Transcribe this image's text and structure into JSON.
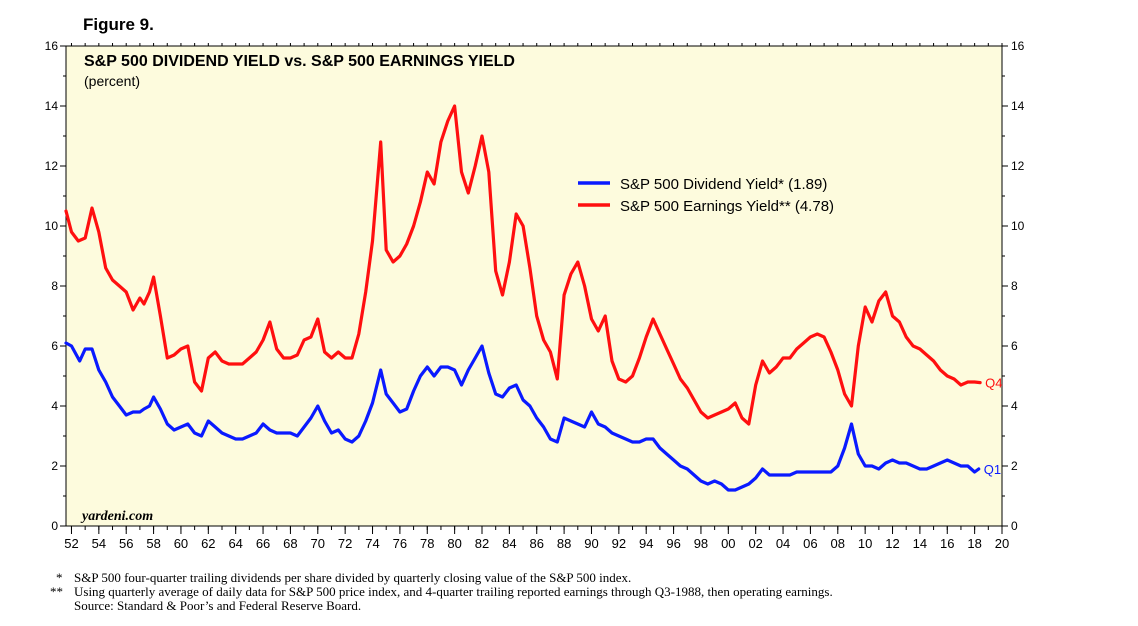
{
  "figure_label": "Figure 9.",
  "source": "Source: Standard & Poor’s and Federal Reserve Board.",
  "footnotes": [
    {
      "mark": "*",
      "text": "S&P 500 four-quarter trailing dividends per share divided by quarterly closing value of the S&P 500 index."
    },
    {
      "mark": "**",
      "text": "Using quarterly average of daily data for S&P 500 price index, and 4-quarter trailing reported earnings through Q3-1988, then operating earnings."
    }
  ],
  "colors": {
    "background": "#fdfbdd",
    "dividend": "#0a1aff",
    "earnings": "#ff0f0f",
    "axis": "#000000"
  },
  "chart_data": {
    "type": "line",
    "title": "S&P 500 DIVIDEND YIELD vs. S&P 500 EARNINGS YIELD",
    "subtitle": "(percent)",
    "watermark": "yardeni.com",
    "xlim": [
      1951.6,
      2020.0
    ],
    "ylim": [
      0,
      16
    ],
    "y_ticks": [
      "0",
      "2",
      "4",
      "6",
      "8",
      "10",
      "12",
      "14",
      "16"
    ],
    "x_ticks": [
      {
        "year": 1952,
        "label": "52"
      },
      {
        "year": 1954,
        "label": "54"
      },
      {
        "year": 1956,
        "label": "56"
      },
      {
        "year": 1958,
        "label": "58"
      },
      {
        "year": 1960,
        "label": "60"
      },
      {
        "year": 1962,
        "label": "62"
      },
      {
        "year": 1964,
        "label": "64"
      },
      {
        "year": 1966,
        "label": "66"
      },
      {
        "year": 1968,
        "label": "68"
      },
      {
        "year": 1970,
        "label": "70"
      },
      {
        "year": 1972,
        "label": "72"
      },
      {
        "year": 1974,
        "label": "74"
      },
      {
        "year": 1976,
        "label": "76"
      },
      {
        "year": 1978,
        "label": "78"
      },
      {
        "year": 1980,
        "label": "80"
      },
      {
        "year": 1982,
        "label": "82"
      },
      {
        "year": 1984,
        "label": "84"
      },
      {
        "year": 1986,
        "label": "86"
      },
      {
        "year": 1988,
        "label": "88"
      },
      {
        "year": 1990,
        "label": "90"
      },
      {
        "year": 1992,
        "label": "92"
      },
      {
        "year": 1994,
        "label": "94"
      },
      {
        "year": 1996,
        "label": "96"
      },
      {
        "year": 1998,
        "label": "98"
      },
      {
        "year": 2000,
        "label": "00"
      },
      {
        "year": 2002,
        "label": "02"
      },
      {
        "year": 2004,
        "label": "04"
      },
      {
        "year": 2006,
        "label": "06"
      },
      {
        "year": 2008,
        "label": "08"
      },
      {
        "year": 2010,
        "label": "10"
      },
      {
        "year": 2012,
        "label": "12"
      },
      {
        "year": 2014,
        "label": "14"
      },
      {
        "year": 2016,
        "label": "16"
      },
      {
        "year": 2018,
        "label": "18"
      },
      {
        "year": 2020,
        "label": "20"
      }
    ],
    "legend_position": "upper-right",
    "series": [
      {
        "key": "dividend",
        "name": "S&P 500 Dividend Yield* (1.89)",
        "end_label": "Q1",
        "x": [
          1951.6,
          1952.0,
          1952.6,
          1953.0,
          1953.5,
          1954.0,
          1954.5,
          1955.0,
          1955.5,
          1956.0,
          1956.5,
          1957.0,
          1957.3,
          1957.7,
          1958.0,
          1958.5,
          1959.0,
          1959.5,
          1960.0,
          1960.5,
          1961.0,
          1961.5,
          1962.0,
          1962.5,
          1963.0,
          1963.5,
          1964.0,
          1964.5,
          1965.0,
          1965.5,
          1966.0,
          1966.5,
          1967.0,
          1967.5,
          1968.0,
          1968.5,
          1969.0,
          1969.5,
          1970.0,
          1970.5,
          1971.0,
          1971.5,
          1972.0,
          1972.5,
          1973.0,
          1973.5,
          1974.0,
          1974.6,
          1975.0,
          1975.5,
          1976.0,
          1976.5,
          1977.0,
          1977.5,
          1978.0,
          1978.5,
          1979.0,
          1979.5,
          1980.0,
          1980.5,
          1981.0,
          1981.5,
          1982.0,
          1982.5,
          1983.0,
          1983.5,
          1984.0,
          1984.5,
          1985.0,
          1985.5,
          1986.0,
          1986.5,
          1987.0,
          1987.5,
          1988.0,
          1988.5,
          1989.0,
          1989.5,
          1990.0,
          1990.5,
          1991.0,
          1991.5,
          1992.0,
          1992.5,
          1993.0,
          1993.5,
          1994.0,
          1994.5,
          1995.0,
          1995.5,
          1996.0,
          1996.5,
          1997.0,
          1997.5,
          1998.0,
          1998.5,
          1999.0,
          1999.5,
          2000.0,
          2000.5,
          2001.0,
          2001.5,
          2002.0,
          2002.5,
          2003.0,
          2003.5,
          2004.0,
          2004.5,
          2005.0,
          2005.5,
          2006.0,
          2006.5,
          2007.0,
          2007.5,
          2008.0,
          2008.5,
          2009.0,
          2009.5,
          2010.0,
          2010.5,
          2011.0,
          2011.5,
          2012.0,
          2012.5,
          2013.0,
          2013.5,
          2014.0,
          2014.5,
          2015.0,
          2015.5,
          2016.0,
          2016.5,
          2017.0,
          2017.5,
          2018.0,
          2018.3
        ],
        "y": [
          6.1,
          6.0,
          5.5,
          5.9,
          5.9,
          5.2,
          4.8,
          4.3,
          4.0,
          3.7,
          3.8,
          3.8,
          3.9,
          4.0,
          4.3,
          3.9,
          3.4,
          3.2,
          3.3,
          3.4,
          3.1,
          3.0,
          3.5,
          3.3,
          3.1,
          3.0,
          2.9,
          2.9,
          3.0,
          3.1,
          3.4,
          3.2,
          3.1,
          3.1,
          3.1,
          3.0,
          3.3,
          3.6,
          4.0,
          3.5,
          3.1,
          3.2,
          2.9,
          2.8,
          3.0,
          3.5,
          4.1,
          5.2,
          4.4,
          4.1,
          3.8,
          3.9,
          4.5,
          5.0,
          5.3,
          5.0,
          5.3,
          5.3,
          5.2,
          4.7,
          5.2,
          5.6,
          6.0,
          5.1,
          4.4,
          4.3,
          4.6,
          4.7,
          4.2,
          4.0,
          3.6,
          3.3,
          2.9,
          2.8,
          3.6,
          3.5,
          3.4,
          3.3,
          3.8,
          3.4,
          3.3,
          3.1,
          3.0,
          2.9,
          2.8,
          2.8,
          2.9,
          2.9,
          2.6,
          2.4,
          2.2,
          2.0,
          1.9,
          1.7,
          1.5,
          1.4,
          1.5,
          1.4,
          1.2,
          1.2,
          1.3,
          1.4,
          1.6,
          1.9,
          1.7,
          1.7,
          1.7,
          1.7,
          1.8,
          1.8,
          1.8,
          1.8,
          1.8,
          1.8,
          2.0,
          2.6,
          3.4,
          2.4,
          2.0,
          2.0,
          1.9,
          2.1,
          2.2,
          2.1,
          2.1,
          2.0,
          1.9,
          1.9,
          2.0,
          2.1,
          2.2,
          2.1,
          2.0,
          2.0,
          1.8,
          1.9
        ]
      },
      {
        "key": "earnings",
        "name": "S&P 500 Earnings Yield** (4.78)",
        "end_label": "Q4",
        "x": [
          1951.6,
          1952.0,
          1952.5,
          1953.0,
          1953.5,
          1954.0,
          1954.5,
          1955.0,
          1955.5,
          1956.0,
          1956.5,
          1957.0,
          1957.3,
          1957.7,
          1958.0,
          1958.5,
          1959.0,
          1959.5,
          1960.0,
          1960.5,
          1961.0,
          1961.5,
          1962.0,
          1962.5,
          1963.0,
          1963.5,
          1964.0,
          1964.5,
          1965.0,
          1965.5,
          1966.0,
          1966.5,
          1967.0,
          1967.5,
          1968.0,
          1968.5,
          1969.0,
          1969.5,
          1970.0,
          1970.5,
          1971.0,
          1971.5,
          1972.0,
          1972.5,
          1973.0,
          1973.5,
          1974.0,
          1974.6,
          1975.0,
          1975.5,
          1976.0,
          1976.5,
          1977.0,
          1977.5,
          1978.0,
          1978.5,
          1979.0,
          1979.5,
          1980.0,
          1980.5,
          1981.0,
          1981.5,
          1982.0,
          1982.5,
          1983.0,
          1983.5,
          1984.0,
          1984.5,
          1985.0,
          1985.5,
          1986.0,
          1986.5,
          1987.0,
          1987.5,
          1988.0,
          1988.5,
          1989.0,
          1989.5,
          1990.0,
          1990.5,
          1991.0,
          1991.5,
          1992.0,
          1992.5,
          1993.0,
          1993.5,
          1994.0,
          1994.5,
          1995.0,
          1995.5,
          1996.0,
          1996.5,
          1997.0,
          1997.5,
          1998.0,
          1998.5,
          1999.0,
          1999.5,
          2000.0,
          2000.5,
          2001.0,
          2001.5,
          2002.0,
          2002.5,
          2003.0,
          2003.5,
          2004.0,
          2004.5,
          2005.0,
          2005.5,
          2006.0,
          2006.5,
          2007.0,
          2007.5,
          2008.0,
          2008.5,
          2009.0,
          2009.5,
          2010.0,
          2010.5,
          2011.0,
          2011.5,
          2012.0,
          2012.5,
          2013.0,
          2013.5,
          2014.0,
          2014.5,
          2015.0,
          2015.5,
          2016.0,
          2016.5,
          2017.0,
          2017.5,
          2018.0,
          2018.4
        ],
        "y": [
          10.5,
          9.8,
          9.5,
          9.6,
          10.6,
          9.8,
          8.6,
          8.2,
          8.0,
          7.8,
          7.2,
          7.6,
          7.4,
          7.8,
          8.3,
          7.0,
          5.6,
          5.7,
          5.9,
          6.0,
          4.8,
          4.5,
          5.6,
          5.8,
          5.5,
          5.4,
          5.4,
          5.4,
          5.6,
          5.8,
          6.2,
          6.8,
          5.9,
          5.6,
          5.6,
          5.7,
          6.2,
          6.3,
          6.9,
          5.8,
          5.6,
          5.8,
          5.6,
          5.6,
          6.4,
          7.8,
          9.5,
          12.8,
          9.2,
          8.8,
          9.0,
          9.4,
          10.0,
          10.8,
          11.8,
          11.4,
          12.8,
          13.5,
          14.0,
          11.8,
          11.1,
          12.0,
          13.0,
          11.8,
          8.5,
          7.7,
          8.8,
          10.4,
          10.0,
          8.6,
          7.0,
          6.2,
          5.8,
          4.9,
          7.7,
          8.4,
          8.8,
          8.0,
          6.9,
          6.5,
          7.0,
          5.5,
          4.9,
          4.8,
          5.0,
          5.6,
          6.3,
          6.9,
          6.4,
          5.9,
          5.4,
          4.9,
          4.6,
          4.2,
          3.8,
          3.6,
          3.7,
          3.8,
          3.9,
          4.1,
          3.6,
          3.4,
          4.7,
          5.5,
          5.1,
          5.3,
          5.6,
          5.6,
          5.9,
          6.1,
          6.3,
          6.4,
          6.3,
          5.8,
          5.2,
          4.4,
          4.0,
          6.0,
          7.3,
          6.8,
          7.5,
          7.8,
          7.0,
          6.8,
          6.3,
          6.0,
          5.9,
          5.7,
          5.5,
          5.2,
          5.0,
          4.9,
          4.7,
          4.8,
          4.8,
          4.78
        ]
      }
    ]
  }
}
